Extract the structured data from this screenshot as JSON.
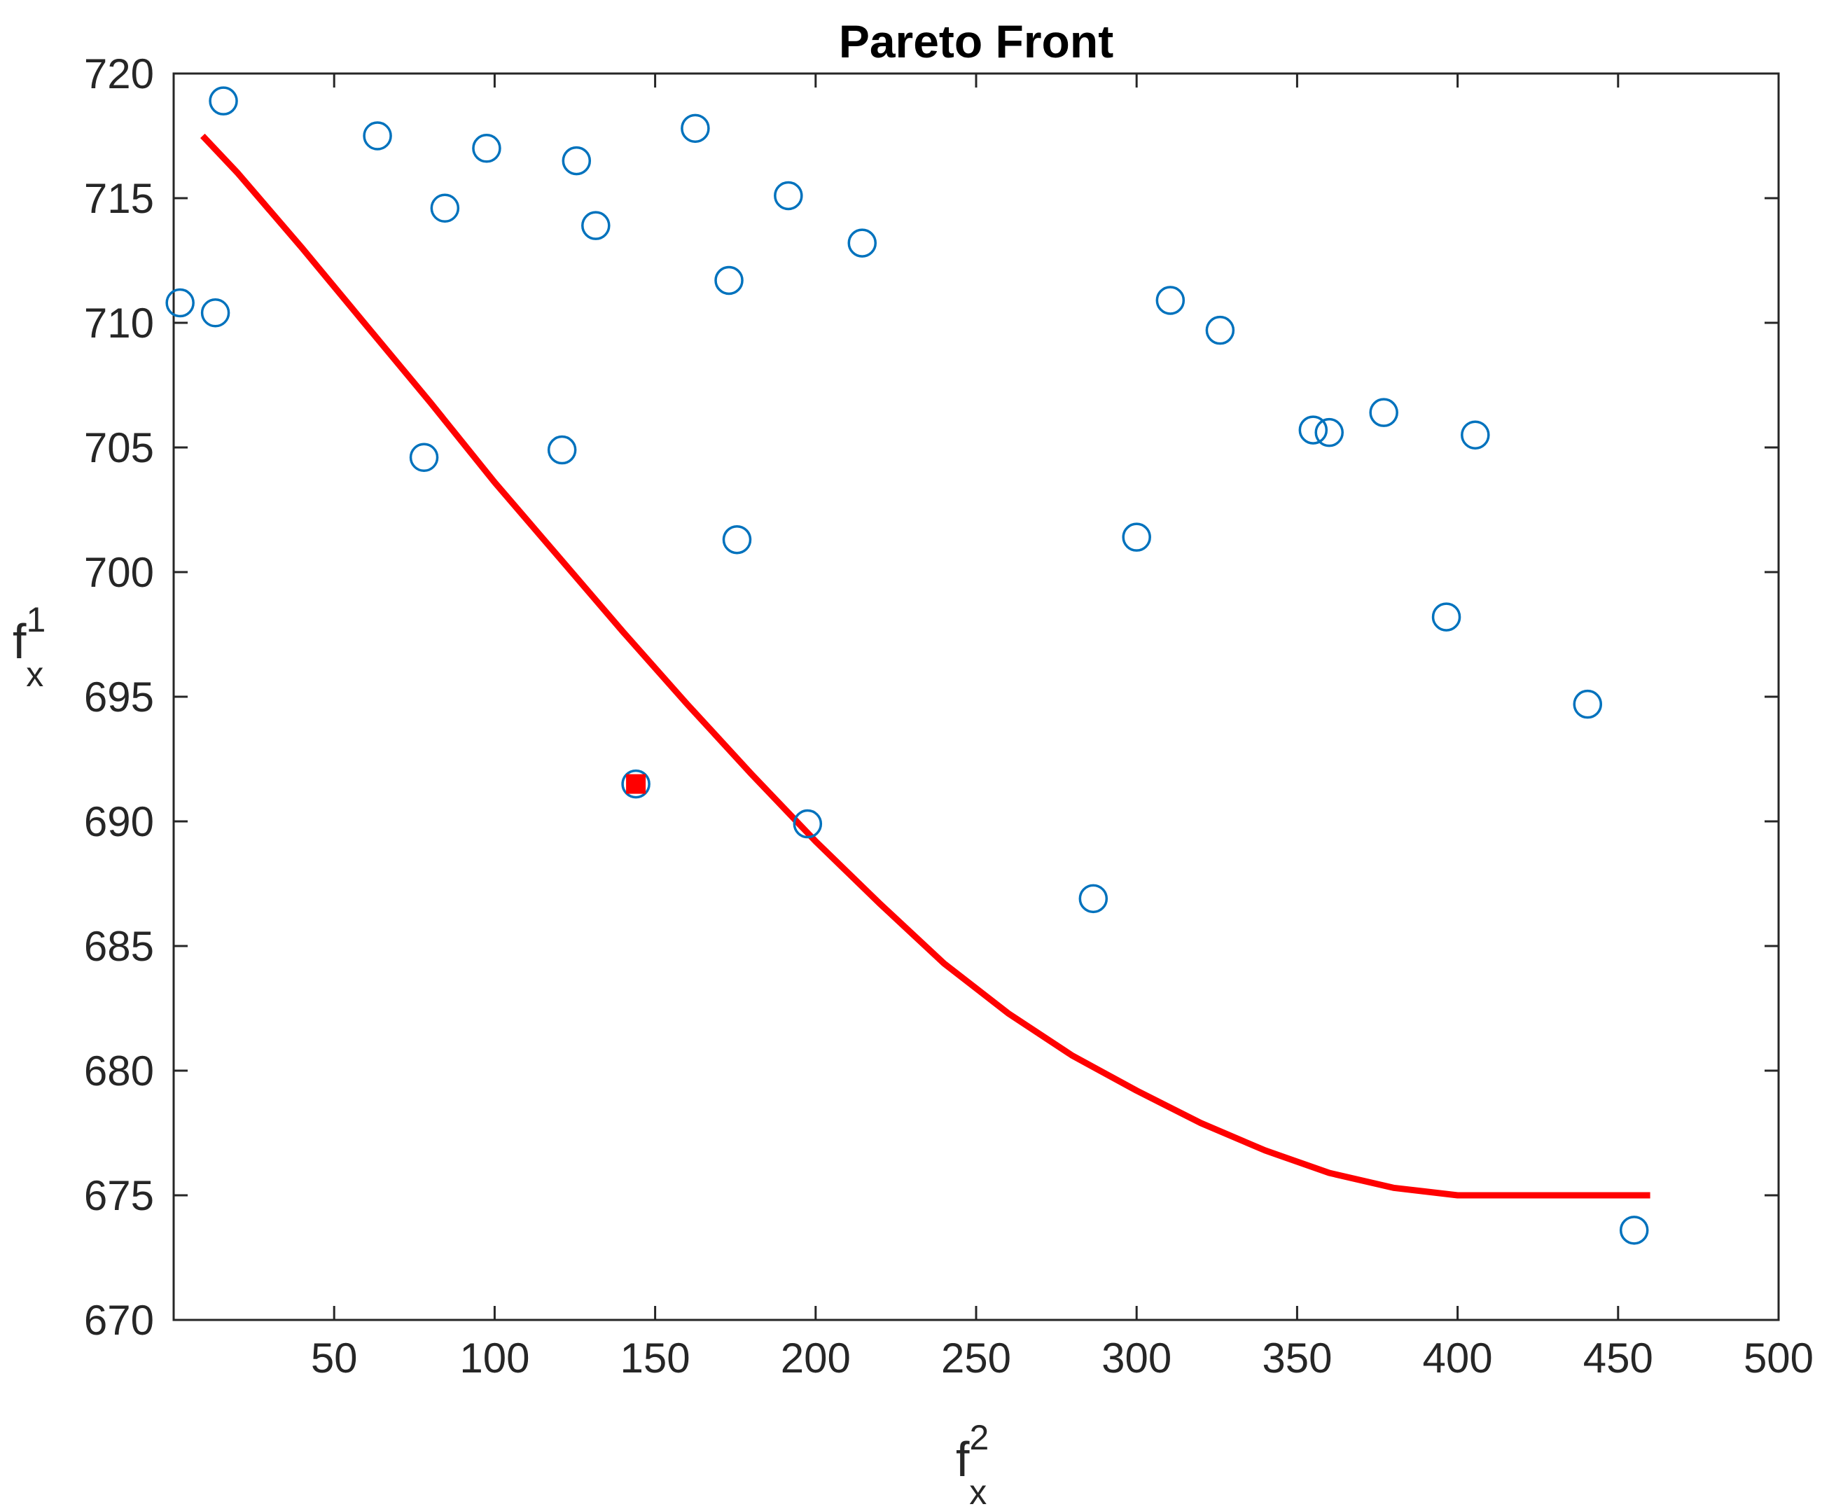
{
  "chart_data": {
    "type": "scatter",
    "title": "Pareto Front",
    "xlabel": {
      "base": "f",
      "sub": "x",
      "sup": "2"
    },
    "ylabel": {
      "base": "f",
      "sub": "x",
      "sup": "1"
    },
    "xlim": [
      0,
      500
    ],
    "ylim": [
      670,
      720
    ],
    "xticks": [
      50,
      100,
      150,
      200,
      250,
      300,
      350,
      400,
      450,
      500
    ],
    "yticks": [
      670,
      675,
      680,
      685,
      690,
      695,
      700,
      705,
      710,
      715,
      720
    ],
    "grid": false,
    "colors": {
      "points": "#0072BD",
      "curve": "#FF0000",
      "highlight": "#FF0000",
      "axis": "#262626"
    },
    "series": [
      {
        "marker": "circle",
        "points": [
          [
            2,
            710.8
          ],
          [
            13,
            710.4
          ],
          [
            15.5,
            718.9
          ],
          [
            63.5,
            717.5
          ],
          [
            78,
            704.6
          ],
          [
            84.5,
            714.6
          ],
          [
            97.5,
            717.0
          ],
          [
            121,
            704.9
          ],
          [
            125.5,
            716.5
          ],
          [
            131.5,
            713.9
          ],
          [
            144,
            691.5
          ],
          [
            162.5,
            717.8
          ],
          [
            173,
            711.7
          ],
          [
            175.5,
            701.3
          ],
          [
            191.5,
            715.1
          ],
          [
            197.5,
            689.9
          ],
          [
            214.5,
            713.2
          ],
          [
            286.5,
            686.9
          ],
          [
            300,
            701.4
          ],
          [
            310.5,
            710.9
          ],
          [
            326,
            709.7
          ],
          [
            355,
            705.7
          ],
          [
            360,
            705.6
          ],
          [
            377,
            706.4
          ],
          [
            396.5,
            698.2
          ],
          [
            405.5,
            705.5
          ],
          [
            440.5,
            694.7
          ],
          [
            455,
            673.6
          ]
        ]
      },
      {
        "marker": "line",
        "points": [
          [
            9,
            717.5
          ],
          [
            20,
            716.0
          ],
          [
            40,
            713.0
          ],
          [
            60,
            709.9
          ],
          [
            80,
            706.8
          ],
          [
            100,
            703.6
          ],
          [
            120,
            700.6
          ],
          [
            140,
            697.6
          ],
          [
            160,
            694.7
          ],
          [
            180,
            691.9
          ],
          [
            200,
            689.2
          ],
          [
            220,
            686.7
          ],
          [
            240,
            684.3
          ],
          [
            260,
            682.3
          ],
          [
            280,
            680.6
          ],
          [
            300,
            679.2
          ],
          [
            320,
            677.9
          ],
          [
            340,
            676.8
          ],
          [
            360,
            675.9
          ],
          [
            380,
            675.3
          ],
          [
            400,
            675.0
          ],
          [
            420,
            675.0
          ],
          [
            440,
            675.0
          ],
          [
            460,
            675.0
          ]
        ]
      },
      {
        "marker": "square",
        "points": [
          [
            144,
            691.5
          ]
        ]
      }
    ]
  }
}
